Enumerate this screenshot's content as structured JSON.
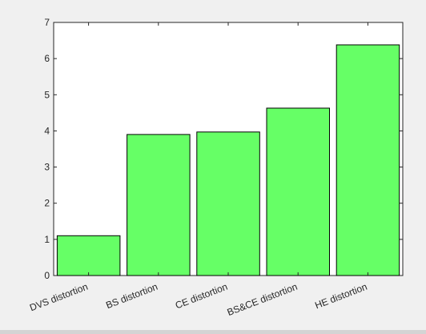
{
  "chart_data": {
    "type": "bar",
    "title": "",
    "xlabel": "",
    "ylabel": "",
    "categories": [
      "DVS distortion",
      "BS distortion",
      "CE distortion",
      "BS&CE distortion",
      "HE distortion"
    ],
    "values": [
      1.1,
      3.9,
      3.97,
      4.63,
      6.38
    ],
    "ylim": [
      0,
      7
    ],
    "yticks": [
      0,
      1,
      2,
      3,
      4,
      5,
      6,
      7
    ],
    "grid": false,
    "bar_color": "#66ff66",
    "bar_edge_color": "#000000",
    "axes_background": "#ffffff",
    "figure_background": "#f0f0f0"
  }
}
